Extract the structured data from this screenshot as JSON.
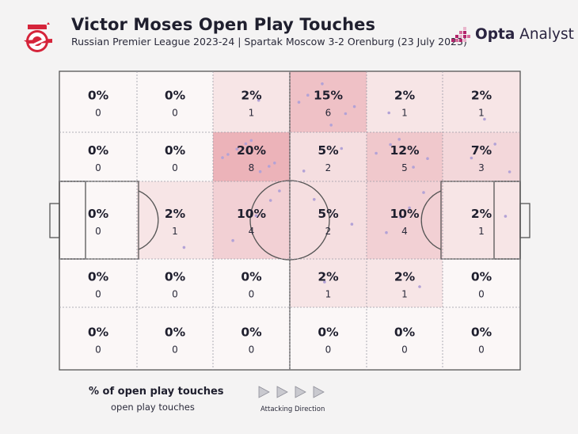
{
  "header": {
    "title": "Victor Moses Open Play Touches",
    "subtitle": "Russian Premier League 2023-24 | Spartak Moscow 3-2 Orenburg (23 July 2023)"
  },
  "brand": {
    "name_bold": "Opta",
    "name_rest": " Analyst"
  },
  "legend": {
    "title": "% of open play touches",
    "subtitle": "open play touches",
    "direction_label": "Attacking Direction"
  },
  "colors": {
    "background": "#f4f3f3",
    "cell_base": "#fbf7f7",
    "heat": "#e8a1a9",
    "pitch_line": "#555555",
    "grid_dash": "#9a9aa6",
    "dot": "#b3a2d6",
    "logo_red": "#d5243a",
    "brand_magenta": "#b3246b"
  },
  "chart_data": {
    "type": "heatmap",
    "title": "Victor Moses Open Play Touches",
    "columns": 6,
    "rows": 5,
    "attacking_direction": "right",
    "cells": [
      [
        {
          "pct": "0%",
          "count": "0",
          "value": 0
        },
        {
          "pct": "0%",
          "count": "0",
          "value": 0
        },
        {
          "pct": "2%",
          "count": "1",
          "value": 1
        },
        {
          "pct": "15%",
          "count": "6",
          "value": 6
        },
        {
          "pct": "2%",
          "count": "1",
          "value": 1
        },
        {
          "pct": "2%",
          "count": "1",
          "value": 1
        }
      ],
      [
        {
          "pct": "0%",
          "count": "0",
          "value": 0
        },
        {
          "pct": "0%",
          "count": "0",
          "value": 0
        },
        {
          "pct": "20%",
          "count": "8",
          "value": 8
        },
        {
          "pct": "5%",
          "count": "2",
          "value": 2
        },
        {
          "pct": "12%",
          "count": "5",
          "value": 5
        },
        {
          "pct": "7%",
          "count": "3",
          "value": 3
        }
      ],
      [
        {
          "pct": "0%",
          "count": "0",
          "value": 0
        },
        {
          "pct": "2%",
          "count": "1",
          "value": 1
        },
        {
          "pct": "10%",
          "count": "4",
          "value": 4
        },
        {
          "pct": "5%",
          "count": "2",
          "value": 2
        },
        {
          "pct": "10%",
          "count": "4",
          "value": 4
        },
        {
          "pct": "2%",
          "count": "1",
          "value": 1
        }
      ],
      [
        {
          "pct": "0%",
          "count": "0",
          "value": 0
        },
        {
          "pct": "0%",
          "count": "0",
          "value": 0
        },
        {
          "pct": "0%",
          "count": "0",
          "value": 0
        },
        {
          "pct": "2%",
          "count": "1",
          "value": 1
        },
        {
          "pct": "2%",
          "count": "1",
          "value": 1
        },
        {
          "pct": "0%",
          "count": "0",
          "value": 0
        }
      ],
      [
        {
          "pct": "0%",
          "count": "0",
          "value": 0
        },
        {
          "pct": "0%",
          "count": "0",
          "value": 0
        },
        {
          "pct": "0%",
          "count": "0",
          "value": 0
        },
        {
          "pct": "0%",
          "count": "0",
          "value": 0
        },
        {
          "pct": "0%",
          "count": "0",
          "value": 0
        },
        {
          "pct": "0%",
          "count": "0",
          "value": 0
        }
      ]
    ],
    "max_value": 8
  }
}
